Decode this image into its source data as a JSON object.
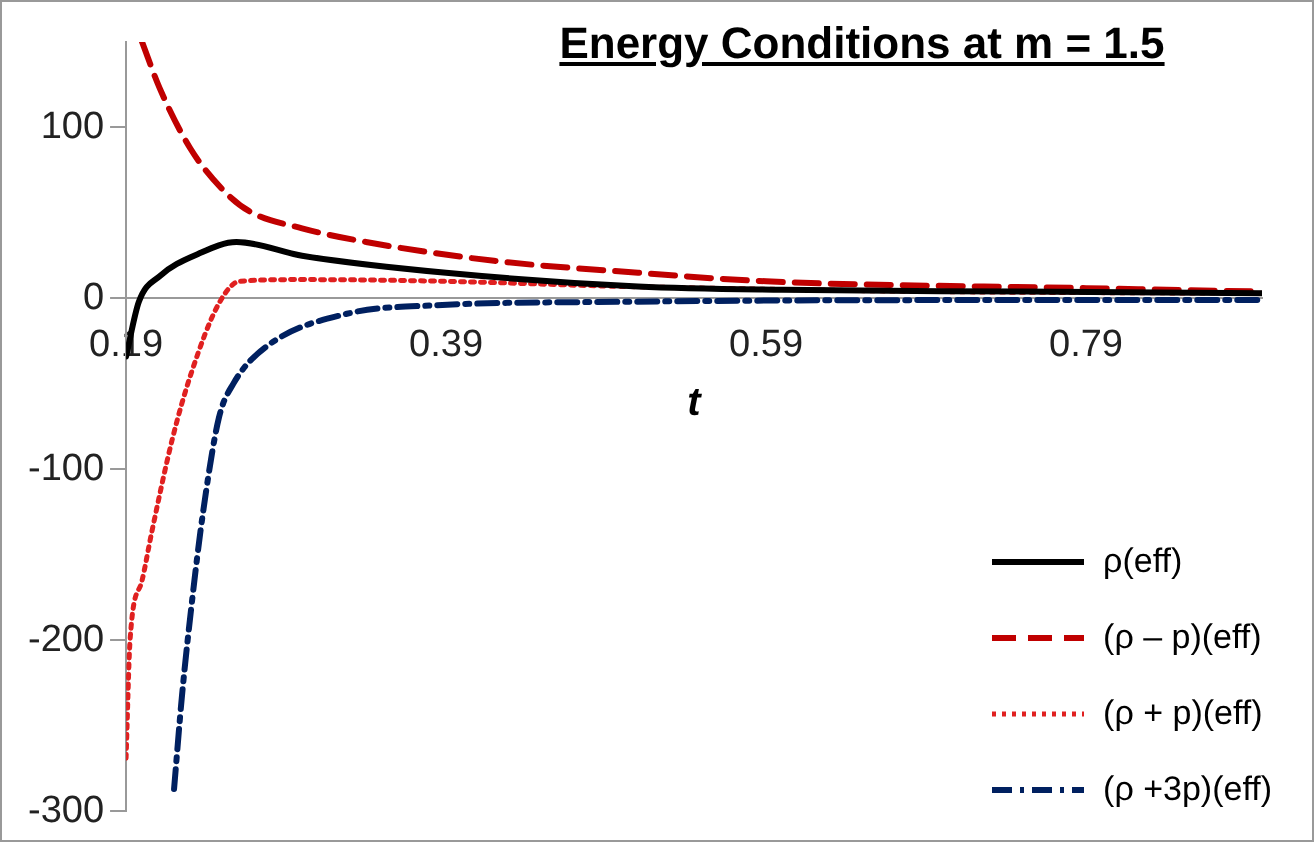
{
  "chart_data": {
    "type": "line",
    "title": "Energy Conditions at m = 1.5",
    "xlabel": "t",
    "xlim": [
      0.19,
      0.9
    ],
    "xticks": [
      0.19,
      0.39,
      0.59,
      0.79
    ],
    "ylim": [
      -300,
      150
    ],
    "yticks": [
      -300,
      -200,
      -100,
      0,
      100
    ],
    "grid": false,
    "legend": "bottom right",
    "marker": "none",
    "series": [
      {
        "name": "ρ(eff)",
        "color": "#000000",
        "line_style": "solid",
        "x": [
          0.19,
          0.198,
          0.211,
          0.235,
          0.259,
          0.3,
          0.39,
          0.51,
          0.6,
          0.75,
          0.9
        ],
        "values": [
          -34,
          -2,
          13,
          26,
          33,
          25,
          15,
          7,
          5,
          4,
          3
        ]
      },
      {
        "name": "(ρ – p)(eff)",
        "color": "#c00000",
        "line_style": "dashed",
        "x": [
          0.2,
          0.211,
          0.23,
          0.25,
          0.267,
          0.3,
          0.34,
          0.42,
          0.51,
          0.59,
          0.79,
          0.9
        ],
        "values": [
          150,
          123,
          88,
          64,
          51,
          41,
          33,
          22,
          15,
          10,
          6,
          4
        ]
      },
      {
        "name": "(ρ + p)(eff)",
        "color": "#e02020",
        "line_style": "dotted",
        "x": [
          0.19,
          0.1925,
          0.2,
          0.206,
          0.219,
          0.231,
          0.248,
          0.261,
          0.3,
          0.39,
          0.5,
          0.7,
          0.9
        ],
        "values": [
          -269,
          -200,
          -165,
          -137,
          -82,
          -43,
          -3,
          10,
          11,
          10,
          7,
          4,
          3
        ]
      },
      {
        "name": "(ρ +3p)(eff)",
        "color": "#002060",
        "line_style": "dashdot",
        "x": [
          0.22,
          0.225,
          0.231,
          0.238,
          0.248,
          0.257,
          0.278,
          0.328,
          0.384,
          0.5,
          0.7,
          0.9
        ],
        "values": [
          -287,
          -232,
          -179,
          -126,
          -70,
          -50,
          -28,
          -9,
          -4,
          -2,
          -1,
          -1
        ]
      }
    ]
  }
}
